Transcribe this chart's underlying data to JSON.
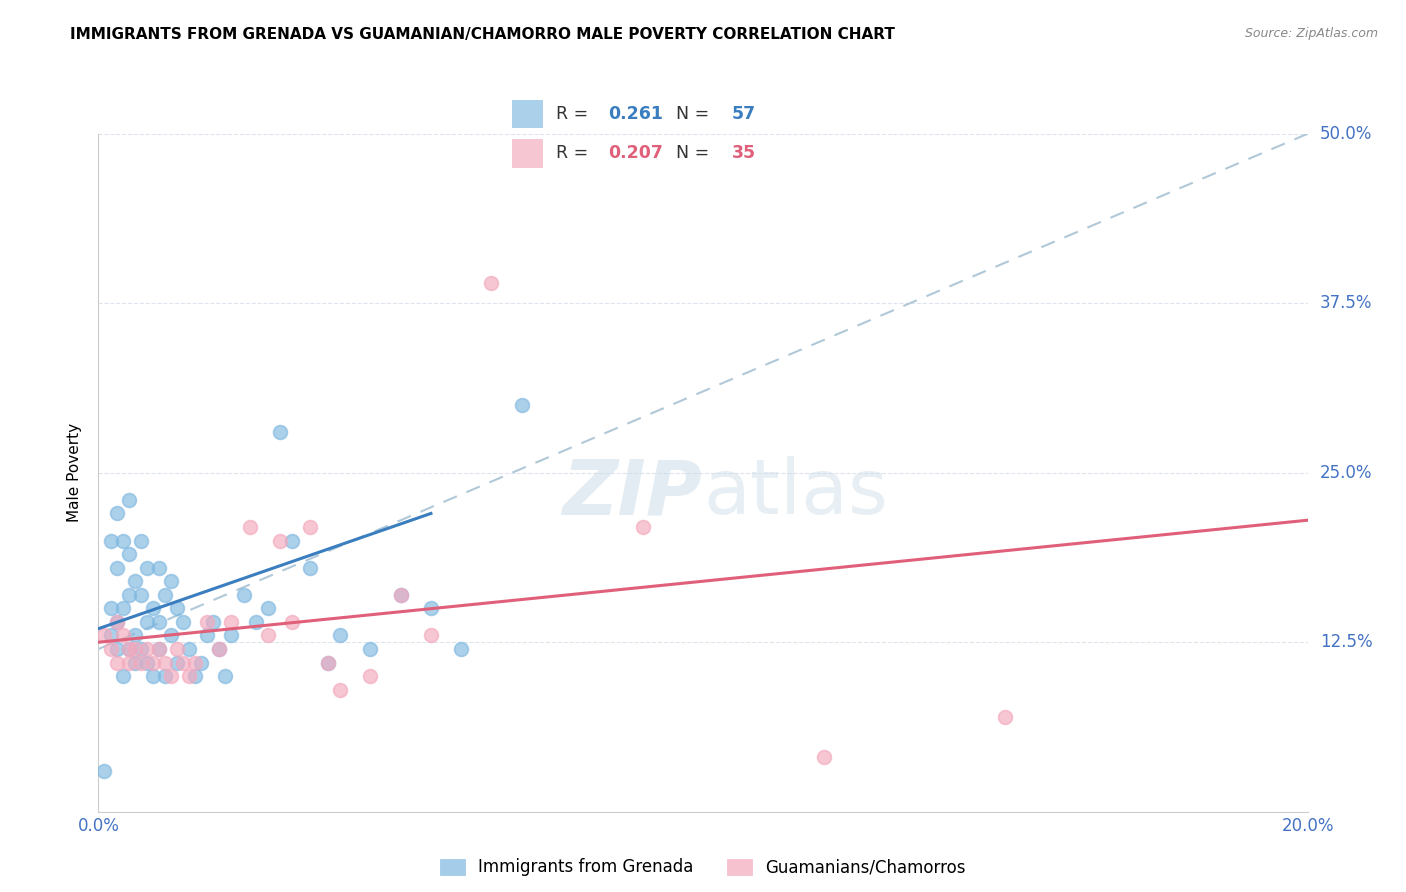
{
  "title": "IMMIGRANTS FROM GRENADA VS GUAMANIAN/CHAMORRO MALE POVERTY CORRELATION CHART",
  "source": "Source: ZipAtlas.com",
  "ylabel": "Male Poverty",
  "right_yticks": [
    0.0,
    0.125,
    0.25,
    0.375,
    0.5
  ],
  "right_yticklabels": [
    "",
    "12.5%",
    "25.0%",
    "37.5%",
    "50.0%"
  ],
  "legend_label1": "Immigrants from Grenada",
  "legend_label2": "Guamanians/Chamorros",
  "blue_color": "#7fb8e0",
  "pink_color": "#f4a8bc",
  "blue_line_color": "#3a7ebf",
  "pink_line_color": "#e0607a",
  "dashed_line_color": "#b0c8d8",
  "watermark_zip": "ZIP",
  "watermark_atlas": "atlas",
  "xlim": [
    0.0,
    0.2
  ],
  "ylim": [
    0.0,
    0.5
  ],
  "blue_trend_x0": 0.0,
  "blue_trend_y0": 0.135,
  "blue_trend_x1": 0.055,
  "blue_trend_y1": 0.22,
  "pink_trend_x0": 0.0,
  "pink_trend_y0": 0.125,
  "pink_trend_x1": 0.2,
  "pink_trend_y1": 0.215,
  "dashed_trend_x0": 0.0,
  "dashed_trend_y0": 0.12,
  "dashed_trend_x1": 0.2,
  "dashed_trend_y1": 0.5,
  "r_blue": "0.261",
  "n_blue": "57",
  "r_pink": "0.207",
  "n_pink": "35",
  "blue_scatter_x": [
    0.001,
    0.002,
    0.002,
    0.002,
    0.003,
    0.003,
    0.003,
    0.003,
    0.004,
    0.004,
    0.004,
    0.005,
    0.005,
    0.005,
    0.005,
    0.006,
    0.006,
    0.006,
    0.007,
    0.007,
    0.007,
    0.008,
    0.008,
    0.008,
    0.009,
    0.009,
    0.01,
    0.01,
    0.01,
    0.011,
    0.011,
    0.012,
    0.012,
    0.013,
    0.013,
    0.014,
    0.015,
    0.016,
    0.017,
    0.018,
    0.019,
    0.02,
    0.021,
    0.022,
    0.024,
    0.026,
    0.028,
    0.03,
    0.032,
    0.035,
    0.038,
    0.04,
    0.045,
    0.05,
    0.055,
    0.06,
    0.07
  ],
  "blue_scatter_y": [
    0.03,
    0.13,
    0.15,
    0.2,
    0.12,
    0.14,
    0.18,
    0.22,
    0.1,
    0.15,
    0.2,
    0.12,
    0.16,
    0.19,
    0.23,
    0.11,
    0.13,
    0.17,
    0.12,
    0.16,
    0.2,
    0.11,
    0.14,
    0.18,
    0.1,
    0.15,
    0.12,
    0.14,
    0.18,
    0.1,
    0.16,
    0.13,
    0.17,
    0.11,
    0.15,
    0.14,
    0.12,
    0.1,
    0.11,
    0.13,
    0.14,
    0.12,
    0.1,
    0.13,
    0.16,
    0.14,
    0.15,
    0.28,
    0.2,
    0.18,
    0.11,
    0.13,
    0.12,
    0.16,
    0.15,
    0.12,
    0.3
  ],
  "pink_scatter_x": [
    0.001,
    0.002,
    0.003,
    0.003,
    0.004,
    0.005,
    0.005,
    0.006,
    0.007,
    0.008,
    0.009,
    0.01,
    0.011,
    0.012,
    0.013,
    0.014,
    0.015,
    0.016,
    0.018,
    0.02,
    0.022,
    0.025,
    0.028,
    0.03,
    0.032,
    0.035,
    0.038,
    0.04,
    0.045,
    0.05,
    0.055,
    0.065,
    0.09,
    0.12,
    0.15
  ],
  "pink_scatter_y": [
    0.13,
    0.12,
    0.11,
    0.14,
    0.13,
    0.12,
    0.11,
    0.12,
    0.11,
    0.12,
    0.11,
    0.12,
    0.11,
    0.1,
    0.12,
    0.11,
    0.1,
    0.11,
    0.14,
    0.12,
    0.14,
    0.21,
    0.13,
    0.2,
    0.14,
    0.21,
    0.11,
    0.09,
    0.1,
    0.16,
    0.13,
    0.39,
    0.21,
    0.04,
    0.07
  ],
  "title_fontsize": 11,
  "axis_label_color": "#4472c4",
  "grid_color": "#dde4ee"
}
